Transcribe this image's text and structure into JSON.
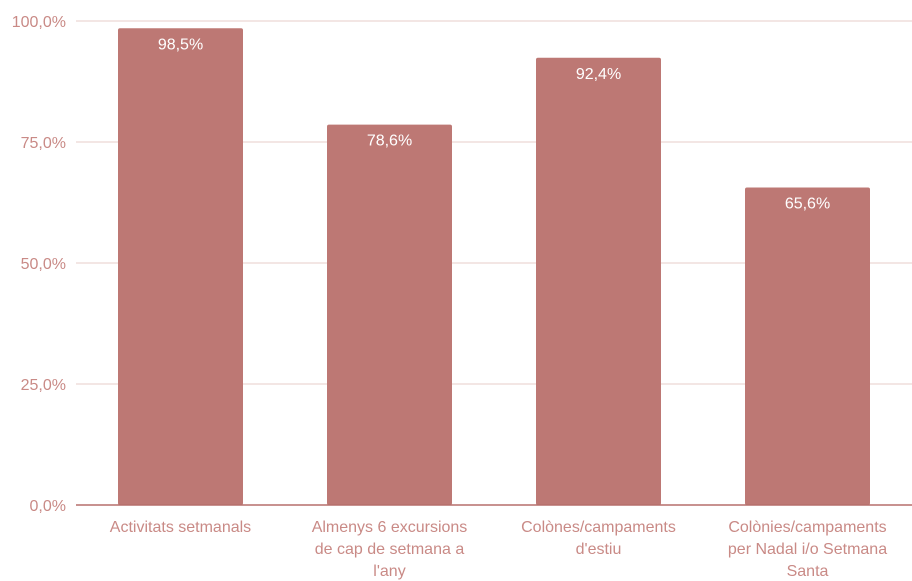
{
  "colors": {
    "bar": "#bd7874",
    "axis_text": "#c98a86",
    "grid": "#ecd6d4",
    "baseline": "#b56f6b",
    "data_label": "#ffffff"
  },
  "chart_data": {
    "type": "bar",
    "title": "",
    "xlabel": "",
    "ylabel": "",
    "categories": [
      "Activitats setmanals",
      "Almenys 6 excursions de cap de setmana a l'any",
      "Colònes/campaments d'estiu",
      "Colònies/campaments per Nadal i/o Setmana Santa"
    ],
    "values": [
      98.5,
      78.6,
      92.4,
      65.6
    ],
    "value_labels": [
      "98,5%",
      "78,6%",
      "92,4%",
      "65,6%"
    ],
    "category_label_lines": [
      [
        "Activitats setmanals"
      ],
      [
        "Almenys 6 excursions",
        "de cap de setmana a",
        "l'any"
      ],
      [
        "Colònes/campaments",
        "d'estiu"
      ],
      [
        "Colònies/campaments",
        "per Nadal i/o Setmana",
        "Santa"
      ]
    ],
    "ylim": [
      0,
      100
    ],
    "yticks": [
      0,
      25,
      50,
      75,
      100
    ],
    "ytick_labels": [
      "0,0%",
      "25,0%",
      "50,0%",
      "75,0%",
      "100,0%"
    ],
    "grid": true,
    "legend": "none"
  }
}
